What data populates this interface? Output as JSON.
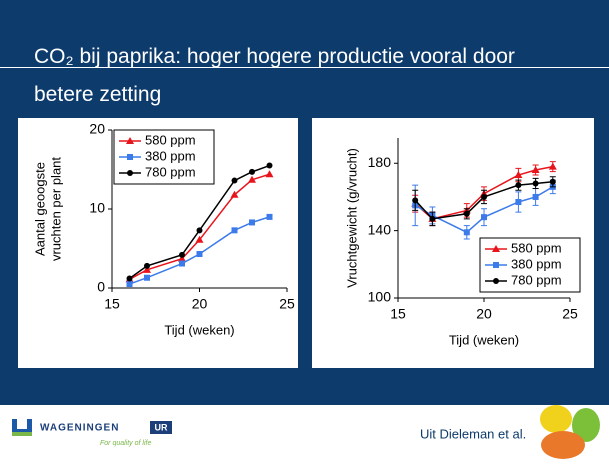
{
  "title": "CO₂ bij paprika: hoger hogere productie vooral door betere zetting",
  "footer": {
    "source": "Uit Dieleman et al.",
    "logo_name": "WAGENINGEN",
    "logo_ur": "UR",
    "logo_tagline": "For quality of life"
  },
  "chart_data": [
    {
      "type": "line",
      "xlabel": "Tijd (weken)",
      "ylabel": [
        "Aantal geoogste",
        "vruchten per plant"
      ],
      "x": [
        16,
        17,
        19,
        20,
        22,
        23,
        24
      ],
      "xlim": [
        15,
        25
      ],
      "xticks": [
        15,
        20,
        25
      ],
      "ylim": [
        0,
        20
      ],
      "yticks": [
        0,
        10,
        20
      ],
      "legend": "upper left",
      "series": [
        {
          "name": "580 ppm",
          "color": "#e8141c",
          "marker": "triangle",
          "values": [
            1.1,
            2.3,
            3.7,
            6.1,
            11.8,
            13.7,
            14.4
          ]
        },
        {
          "name": "380 ppm",
          "color": "#3b7bea",
          "marker": "square",
          "values": [
            0.5,
            1.3,
            3.1,
            4.3,
            7.3,
            8.3,
            9.0
          ]
        },
        {
          "name": "780 ppm",
          "color": "#000000",
          "marker": "circle",
          "values": [
            1.2,
            2.8,
            4.2,
            7.3,
            13.6,
            14.7,
            15.5
          ]
        }
      ]
    },
    {
      "type": "line",
      "xlabel": "Tijd (weken)",
      "ylabel": [
        "Vruchtgewicht (g/vrucht)"
      ],
      "x": [
        16,
        17,
        19,
        20,
        22,
        23,
        24
      ],
      "xlim": [
        15,
        25
      ],
      "xticks": [
        15,
        20,
        25
      ],
      "ylim": [
        100,
        195
      ],
      "yticks": [
        100,
        140,
        180
      ],
      "legend": "lower right",
      "series": [
        {
          "name": "580 ppm",
          "color": "#e8141c",
          "marker": "triangle",
          "values": [
            156,
            147,
            152,
            162,
            173,
            176,
            178
          ],
          "errors": [
            5,
            4,
            4,
            4,
            4,
            3,
            3
          ]
        },
        {
          "name": "380 ppm",
          "color": "#3b7bea",
          "marker": "square",
          "values": [
            155,
            149,
            139,
            148,
            157,
            160,
            166
          ],
          "errors": [
            12,
            5,
            4,
            5,
            6,
            5,
            4
          ]
        },
        {
          "name": "780 ppm",
          "color": "#000000",
          "marker": "circle",
          "values": [
            158,
            147,
            150,
            160,
            167,
            168,
            169
          ],
          "errors": [
            6,
            4,
            3,
            4,
            3,
            3,
            3
          ]
        }
      ]
    }
  ]
}
